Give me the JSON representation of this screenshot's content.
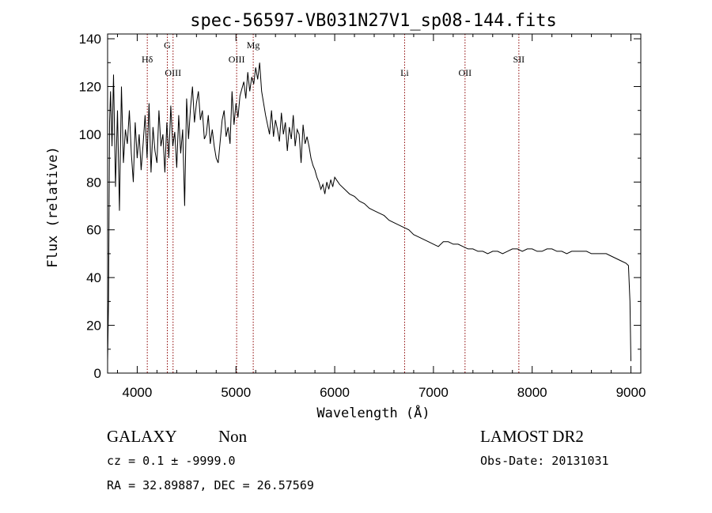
{
  "chart_data": {
    "type": "line",
    "title": "spec-56597-VB031N27V1_sp08-144.fits",
    "xlabel": "Wavelength (Å)",
    "ylabel": "Flux (relative)",
    "xlim": [
      3700,
      9100
    ],
    "ylim": [
      0,
      142
    ],
    "x_ticks": [
      4000,
      5000,
      6000,
      7000,
      8000,
      9000
    ],
    "y_ticks": [
      0,
      20,
      40,
      60,
      80,
      100,
      120,
      140
    ],
    "grid": false,
    "line_color": "#000000",
    "marker_color": "#8b0000",
    "spectral_lines": [
      {
        "label": "Hδ",
        "wavelength": 4102,
        "label_row": 1
      },
      {
        "label": "G",
        "wavelength": 4305,
        "label_row": 0
      },
      {
        "label": "OIII",
        "wavelength": 4363,
        "label_row": 2
      },
      {
        "label": "OIII",
        "wavelength": 5007,
        "label_row": 1
      },
      {
        "label": "Mg",
        "wavelength": 5175,
        "label_row": 0
      },
      {
        "label": "Li",
        "wavelength": 6708,
        "label_row": 2
      },
      {
        "label": "OII",
        "wavelength": 7320,
        "label_row": 2
      },
      {
        "label": "SII",
        "wavelength": 7865,
        "label_row": 1
      }
    ],
    "series": [
      {
        "x": [
          3700,
          3710,
          3720,
          3730,
          3745,
          3760,
          3780,
          3800,
          3820,
          3840,
          3860,
          3880,
          3900,
          3920,
          3940,
          3960,
          3980,
          4000,
          4020,
          4040,
          4060,
          4080,
          4100,
          4120,
          4140,
          4160,
          4180,
          4200,
          4220,
          4240,
          4260,
          4280,
          4300,
          4320,
          4340,
          4360,
          4380,
          4400,
          4420,
          4440,
          4460,
          4480,
          4500,
          4520,
          4540,
          4560,
          4580,
          4600,
          4620,
          4640,
          4660,
          4680,
          4700,
          4720,
          4740,
          4760,
          4780,
          4800,
          4820,
          4840,
          4860,
          4880,
          4900,
          4920,
          4940,
          4960,
          4980,
          5000,
          5020,
          5040,
          5060,
          5080,
          5100,
          5120,
          5140,
          5160,
          5180,
          5200,
          5220,
          5240,
          5260,
          5280,
          5300,
          5320,
          5340,
          5360,
          5380,
          5400,
          5420,
          5440,
          5460,
          5480,
          5500,
          5520,
          5540,
          5560,
          5580,
          5600,
          5620,
          5640,
          5660,
          5680,
          5700,
          5720,
          5740,
          5760,
          5780,
          5800,
          5820,
          5840,
          5860,
          5880,
          5900,
          5920,
          5940,
          5960,
          5980,
          6000,
          6050,
          6100,
          6150,
          6200,
          6250,
          6300,
          6350,
          6400,
          6450,
          6500,
          6550,
          6600,
          6650,
          6700,
          6750,
          6800,
          6850,
          6900,
          6950,
          7000,
          7050,
          7100,
          7150,
          7200,
          7250,
          7300,
          7350,
          7400,
          7450,
          7500,
          7550,
          7600,
          7650,
          7700,
          7750,
          7800,
          7850,
          7900,
          7950,
          8000,
          8050,
          8100,
          8150,
          8200,
          8250,
          8300,
          8350,
          8400,
          8450,
          8500,
          8550,
          8600,
          8650,
          8700,
          8750,
          8800,
          8850,
          8900,
          8950,
          8975,
          8990,
          9000
        ],
        "y": [
          5,
          30,
          105,
          118,
          95,
          125,
          78,
          110,
          68,
          120,
          88,
          102,
          96,
          110,
          92,
          80,
          105,
          90,
          100,
          85,
          96,
          108,
          90,
          113,
          84,
          103,
          93,
          88,
          110,
          95,
          100,
          84,
          105,
          90,
          112,
          95,
          101,
          86,
          108,
          92,
          102,
          70,
          115,
          98,
          111,
          120,
          105,
          113,
          118,
          106,
          110,
          98,
          100,
          108,
          96,
          102,
          95,
          90,
          88,
          97,
          106,
          110,
          99,
          103,
          96,
          118,
          104,
          113,
          107,
          116,
          119,
          122,
          115,
          126,
          118,
          124,
          121,
          128,
          123,
          130,
          118,
          113,
          108,
          104,
          100,
          110,
          99,
          106,
          102,
          97,
          109,
          100,
          105,
          93,
          103,
          98,
          108,
          95,
          102,
          100,
          88,
          104,
          96,
          99,
          95,
          90,
          87,
          85,
          82,
          80,
          77,
          79,
          75,
          80,
          77,
          81,
          78,
          82,
          79,
          77,
          75,
          74,
          72,
          71,
          69,
          68,
          67,
          66,
          64,
          63,
          62,
          61,
          60,
          58,
          57,
          56,
          55,
          54,
          53,
          55,
          55,
          54,
          54,
          53,
          52,
          52,
          51,
          51,
          50,
          51,
          51,
          50,
          51,
          52,
          52,
          51,
          52,
          52,
          51,
          51,
          52,
          52,
          51,
          51,
          50,
          51,
          51,
          51,
          51,
          50,
          50,
          50,
          50,
          49,
          48,
          47,
          46,
          45,
          30,
          5
        ]
      }
    ]
  },
  "info": {
    "object_class": "GALAXY",
    "subclass": "Non",
    "cz": "cz = 0.1 ± -9999.0",
    "radec": "RA =  32.89887, DEC =  26.57569",
    "survey": "LAMOST DR2",
    "obs_date": "Obs-Date: 20131031"
  }
}
